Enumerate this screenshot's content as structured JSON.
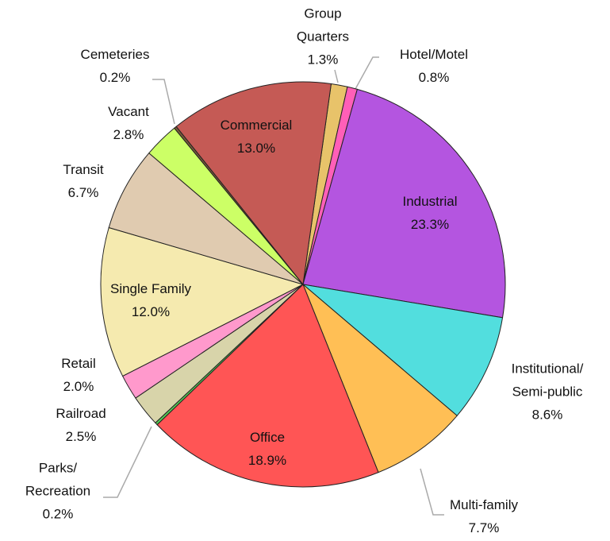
{
  "chart_data": {
    "type": "pie",
    "categories": [
      "Group\nQuarters",
      "Hotel/Motel",
      "Industrial",
      "Institutional/\nSemi-public",
      "Multi-family",
      "Office",
      "Parks/\nRecreation",
      "Railroad",
      "Retail",
      "Single Family",
      "Transit",
      "Vacant",
      "Cemeteries",
      "Commercial"
    ],
    "values": [
      1.3,
      0.8,
      23.3,
      8.6,
      7.7,
      18.9,
      0.2,
      2.5,
      2.0,
      12.0,
      6.7,
      2.8,
      0.2,
      13.0
    ],
    "value_labels": [
      "1.3%",
      "0.8%",
      "23.3%",
      "8.6%",
      "7.7%",
      "18.9%",
      "0.2%",
      "2.5%",
      "2.0%",
      "12.0%",
      "6.7%",
      "2.8%",
      "0.2%",
      "13.0%"
    ],
    "colors": [
      "#e8c36a",
      "#ff5fb8",
      "#b455e0",
      "#52dede",
      "#ffbf55",
      "#ff5555",
      "#55cc55",
      "#d8d4aa",
      "#ff99cc",
      "#f5eaaf",
      "#e0cbb0",
      "#ccff66",
      "#7a5a3a",
      "#c55a55"
    ]
  }
}
